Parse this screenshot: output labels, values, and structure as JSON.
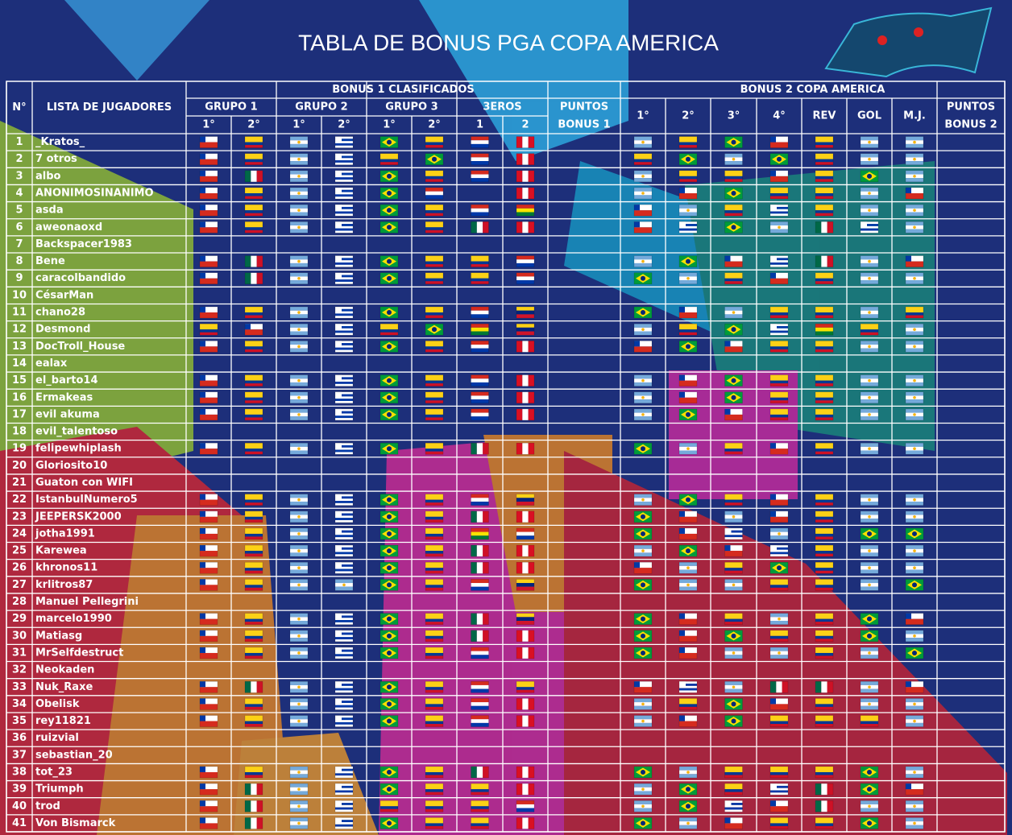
{
  "header": {
    "title": "TABLA DE BONUS PGA COPA AMERICA"
  },
  "table": {
    "col_no": "N°",
    "col_players": "LISTA DE JUGADORES",
    "bonus1": {
      "title": "BONUS 1 CLASIFICADOS",
      "groups": [
        "GRUPO 1",
        "GRUPO 2",
        "GRUPO 3",
        "3EROS"
      ],
      "places": [
        "1°",
        "2°",
        "1°",
        "2°",
        "1°",
        "2°",
        "1",
        "2"
      ],
      "points": [
        "PUNTOS",
        "BONUS 1"
      ]
    },
    "bonus2": {
      "title": "BONUS 2 COPA AMERICA",
      "columns": [
        "1°",
        "2°",
        "3°",
        "4°",
        "REV",
        "GOL",
        "M.J."
      ],
      "points": [
        "PUNTOS",
        "BONUS 2"
      ]
    },
    "rows": [
      [
        1,
        "_Kratos_"
      ],
      [
        2,
        "7 otros"
      ],
      [
        3,
        "albo"
      ],
      [
        4,
        "ANONIMOSINANIMO"
      ],
      [
        5,
        "asda"
      ],
      [
        6,
        "aweonaoxd"
      ],
      [
        7,
        "Backspacer1983"
      ],
      [
        8,
        "Bene"
      ],
      [
        9,
        "caracolbandido"
      ],
      [
        10,
        "CésarMan"
      ],
      [
        11,
        "chano28"
      ],
      [
        12,
        "Desmond"
      ],
      [
        13,
        "DocTroll_House"
      ],
      [
        14,
        "ealax"
      ],
      [
        15,
        "el_barto14"
      ],
      [
        16,
        "Ermakeas"
      ],
      [
        17,
        "evil akuma"
      ],
      [
        18,
        "evil_talentoso"
      ],
      [
        19,
        "felipewhiplash"
      ],
      [
        20,
        "Gloriosito10"
      ],
      [
        21,
        "Guaton con WIFI"
      ],
      [
        22,
        "IstanbulNumero5"
      ],
      [
        23,
        "JEEPERSK2000"
      ],
      [
        24,
        "jotha1991"
      ],
      [
        25,
        "Karewea"
      ],
      [
        26,
        "khronos11"
      ],
      [
        27,
        "krlitros87"
      ],
      [
        28,
        "Manuel Pellegrini"
      ],
      [
        29,
        "marcelo1990"
      ],
      [
        30,
        "Matiasg"
      ],
      [
        31,
        "MrSelfdestruct"
      ],
      [
        32,
        "Neokaden"
      ],
      [
        33,
        "Nuk_Raxe"
      ],
      [
        34,
        "Obelisk"
      ],
      [
        35,
        "rey11821"
      ],
      [
        36,
        "ruizvial"
      ],
      [
        37,
        "sebastian_20"
      ],
      [
        38,
        "tot_23"
      ],
      [
        39,
        "Triumph"
      ],
      [
        40,
        "trod"
      ],
      [
        41,
        "Von Bismarck"
      ]
    ]
  }
}
